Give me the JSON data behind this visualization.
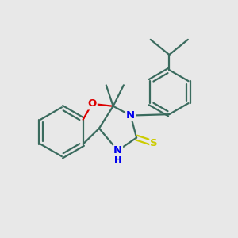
{
  "background_color": "#e8e8e8",
  "bond_color": "#3a6b5e",
  "bond_width": 1.6,
  "atom_colors": {
    "O": "#dd0000",
    "N": "#0000ee",
    "S": "#cccc00",
    "C": "#3a6b5e"
  },
  "figsize": [
    3.0,
    3.0
  ],
  "dpi": 100
}
